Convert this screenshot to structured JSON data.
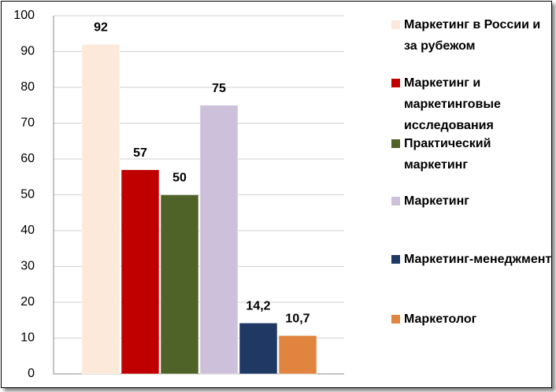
{
  "chart_data": {
    "type": "bar",
    "categories": [
      null
    ],
    "series": [
      {
        "name": "Маркетинг в России и за рубежом",
        "color": "#fde9d9",
        "values": [
          92
        ]
      },
      {
        "name": "Маркетинг и маркетинговые исследования",
        "color": "#c00000",
        "values": [
          57
        ]
      },
      {
        "name": "Практический маркетинг",
        "color": "#4f6228",
        "values": [
          50
        ]
      },
      {
        "name": "Маркетинг",
        "color": "#ccc0da",
        "values": [
          75
        ]
      },
      {
        "name": "Маркетинг-менеджмент",
        "color": "#1f3864",
        "values": [
          14.2
        ],
        "value_labels": [
          "14,2"
        ]
      },
      {
        "name": "Маркетолог",
        "color": "#e0843f",
        "values": [
          10.7
        ],
        "value_labels": [
          "10,7"
        ]
      }
    ],
    "ylim": [
      0,
      100
    ],
    "yticks": [
      0,
      10,
      20,
      30,
      40,
      50,
      60,
      70,
      80,
      90,
      100
    ],
    "grid": true,
    "legend": "right"
  }
}
